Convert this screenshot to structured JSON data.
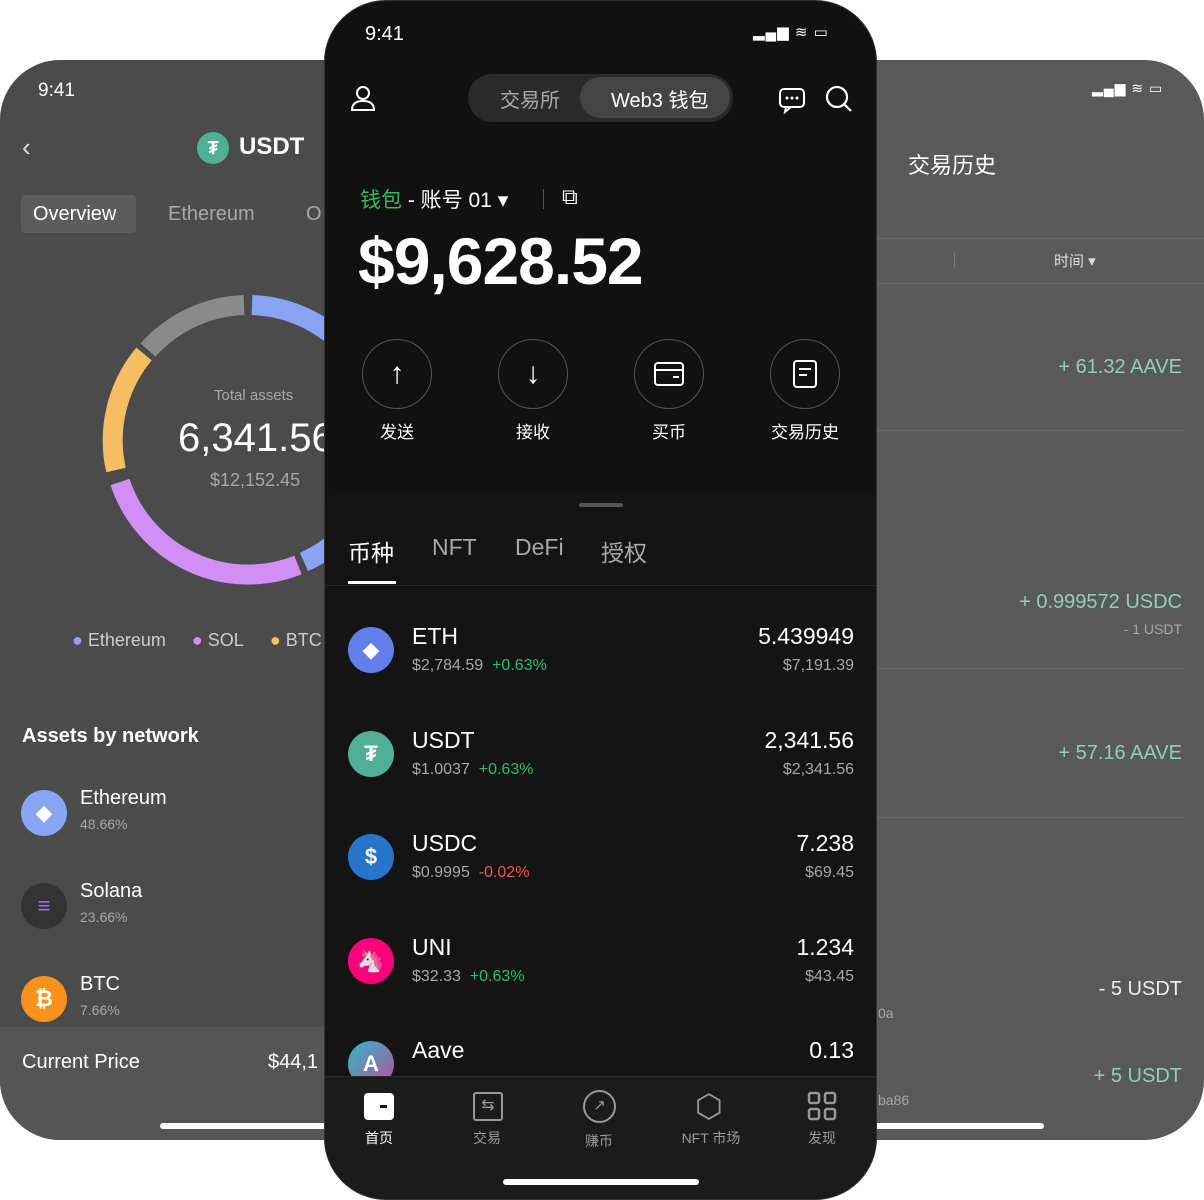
{
  "left_screen": {
    "status_time": "9:41",
    "coin_name": "USDT",
    "tabs": [
      "Overview",
      "Ethereum",
      "O"
    ],
    "total_label": "Total assets",
    "total_value": "6,341.56",
    "total_usd": "$12,152.45",
    "legend": [
      {
        "name": "Ethereum",
        "color": "#8aa4f5"
      },
      {
        "name": "SOL",
        "color": "#d18ef5"
      },
      {
        "name": "BTC",
        "color": "#f7bd63"
      }
    ],
    "section_title": "Assets by network",
    "networks": [
      {
        "name": "Ethereum",
        "pct": "48.66%"
      },
      {
        "name": "Solana",
        "pct": "23.66%"
      },
      {
        "name": "BTC",
        "pct": "7.66%"
      }
    ],
    "current_price_label": "Current Price",
    "current_price_value": "$44,1"
  },
  "right_screen": {
    "title": "交易历史",
    "filter_time": "时间",
    "transactions": [
      {
        "amount": "+ 61.32 AAVE",
        "sub": ""
      },
      {
        "amount": "+ 0.999572 USDC",
        "sub": "- 1 USDT"
      },
      {
        "amount": "+ 57.16 AAVE",
        "sub": ""
      },
      {
        "amount": "- 5 USDT",
        "sub": "",
        "addr": "0a"
      },
      {
        "amount": "+ 5 USDT",
        "sub": "",
        "addr": "ba86"
      }
    ]
  },
  "center_screen": {
    "status_time": "9:41",
    "segment": [
      "交易所",
      "Web3 钱包"
    ],
    "wallet_label": "钱包",
    "account": "- 账号 01",
    "balance": "$9,628.52",
    "actions": [
      "发送",
      "接收",
      "买币",
      "交易历史"
    ],
    "asset_tabs": [
      "币种",
      "NFT",
      "DeFi",
      "授权"
    ],
    "tokens": [
      {
        "symbol": "ETH",
        "price": "$2,784.59",
        "change": "+0.63%",
        "dir": "up",
        "amount": "5.439949",
        "value": "$7,191.39",
        "color": "#627eea"
      },
      {
        "symbol": "USDT",
        "price": "$1.0037",
        "change": "+0.63%",
        "dir": "up",
        "amount": "2,341.56",
        "value": "$2,341.56",
        "color": "#50af95"
      },
      {
        "symbol": "USDC",
        "price": "$0.9995",
        "change": "-0.02%",
        "dir": "down",
        "amount": "7.238",
        "value": "$69.45",
        "color": "#2775ca"
      },
      {
        "symbol": "UNI",
        "price": "$32.33",
        "change": "+0.63%",
        "dir": "up",
        "amount": "1.234",
        "value": "$43.45",
        "color": "#ff007a"
      },
      {
        "symbol": "Aave",
        "price": "",
        "change": "",
        "dir": "up",
        "amount": "0.13",
        "value": "",
        "color": "#b6509e"
      }
    ],
    "nav": [
      "首页",
      "交易",
      "赚币",
      "NFT 市场",
      "发现"
    ]
  }
}
